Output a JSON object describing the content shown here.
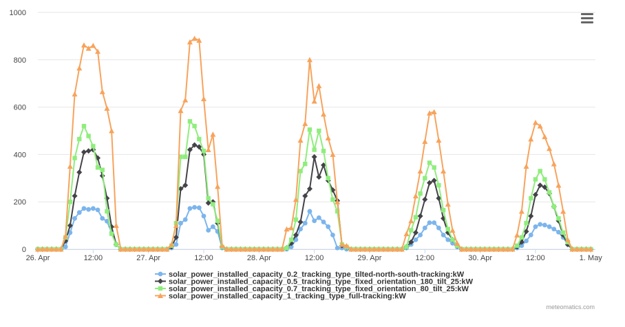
{
  "chart_data": {
    "type": "line",
    "title": "",
    "xlabel": "",
    "ylabel": "",
    "ylim": [
      0,
      1000
    ],
    "yticks": [
      0,
      200,
      400,
      600,
      800,
      1000
    ],
    "xlim": [
      0,
      121
    ],
    "x_unit": "hours since 26. Apr 00:00",
    "xtick_labels": [
      {
        "x": 0,
        "label": "26. Apr"
      },
      {
        "x": 12,
        "label": "12:00"
      },
      {
        "x": 24,
        "label": "27. Apr"
      },
      {
        "x": 36,
        "label": "12:00"
      },
      {
        "x": 48,
        "label": "28. Apr"
      },
      {
        "x": 60,
        "label": "12:00"
      },
      {
        "x": 72,
        "label": "29. Apr"
      },
      {
        "x": 84,
        "label": "12:00"
      },
      {
        "x": 96,
        "label": "30. Apr"
      },
      {
        "x": 108,
        "label": "12:00"
      },
      {
        "x": 120,
        "label": "1. May"
      }
    ],
    "grid": "horizontal",
    "legend_position": "bottom-center",
    "x": [
      0,
      1,
      2,
      3,
      4,
      5,
      6,
      7,
      8,
      9,
      10,
      11,
      12,
      13,
      14,
      15,
      16,
      17,
      18,
      19,
      20,
      21,
      22,
      23,
      24,
      25,
      26,
      27,
      28,
      29,
      30,
      31,
      32,
      33,
      34,
      35,
      36,
      37,
      38,
      39,
      40,
      41,
      42,
      43,
      44,
      45,
      46,
      47,
      48,
      49,
      50,
      51,
      52,
      53,
      54,
      55,
      56,
      57,
      58,
      59,
      60,
      61,
      62,
      63,
      64,
      65,
      66,
      67,
      68,
      69,
      70,
      71,
      72,
      73,
      74,
      75,
      76,
      77,
      78,
      79,
      80,
      81,
      82,
      83,
      84,
      85,
      86,
      87,
      88,
      89,
      90,
      91,
      92,
      93,
      94,
      95,
      96,
      97,
      98,
      99,
      100,
      101,
      102,
      103,
      104,
      105,
      106,
      107,
      108,
      109,
      110,
      111,
      112,
      113,
      114,
      115,
      116,
      117,
      118,
      119,
      120
    ],
    "series": [
      {
        "name": "solar_power_installed_capacity_0.2_tracking_type_tilted-north-south-tracking:kW",
        "color": "#7cb5ec",
        "marker": "circle",
        "values": [
          0,
          0,
          0,
          0,
          0,
          0,
          10,
          70,
          130,
          155,
          172,
          168,
          172,
          166,
          130,
          118,
          70,
          20,
          0,
          0,
          0,
          0,
          0,
          0,
          0,
          0,
          0,
          0,
          0,
          5,
          20,
          110,
          125,
          172,
          177,
          175,
          140,
          80,
          95,
          75,
          5,
          0,
          0,
          0,
          0,
          0,
          0,
          0,
          0,
          0,
          0,
          0,
          0,
          0,
          0,
          10,
          40,
          85,
          110,
          160,
          120,
          133,
          115,
          95,
          60,
          5,
          5,
          0,
          0,
          0,
          0,
          0,
          0,
          0,
          0,
          0,
          0,
          0,
          0,
          0,
          5,
          20,
          40,
          60,
          90,
          112,
          112,
          90,
          60,
          40,
          25,
          10,
          0,
          0,
          0,
          0,
          0,
          0,
          0,
          0,
          0,
          0,
          0,
          0,
          5,
          15,
          35,
          60,
          95,
          105,
          102,
          95,
          85,
          72,
          50,
          20,
          0,
          0,
          0,
          0,
          0
        ]
      },
      {
        "name": "solar_power_installed_capacity_0.5_tracking_type_fixed_orientation_180_tilt_25:kW",
        "color": "#434348",
        "marker": "diamond",
        "values": [
          0,
          0,
          0,
          0,
          0,
          0,
          35,
          100,
          225,
          325,
          410,
          415,
          420,
          385,
          310,
          215,
          95,
          20,
          0,
          0,
          0,
          0,
          0,
          0,
          0,
          0,
          0,
          0,
          0,
          10,
          50,
          255,
          270,
          420,
          440,
          432,
          400,
          195,
          200,
          110,
          10,
          0,
          0,
          0,
          0,
          0,
          0,
          0,
          0,
          0,
          0,
          0,
          0,
          0,
          5,
          25,
          60,
          115,
          225,
          255,
          390,
          305,
          355,
          290,
          250,
          205,
          15,
          10,
          0,
          0,
          0,
          0,
          0,
          0,
          0,
          0,
          0,
          0,
          0,
          0,
          10,
          30,
          70,
          140,
          210,
          280,
          290,
          215,
          130,
          70,
          40,
          15,
          0,
          0,
          0,
          0,
          0,
          0,
          0,
          0,
          0,
          0,
          0,
          0,
          10,
          30,
          75,
          140,
          230,
          270,
          262,
          235,
          180,
          120,
          60,
          20,
          0,
          0,
          0,
          0,
          0
        ]
      },
      {
        "name": "solar_power_installed_capacity_0.7_tracking_type_fixed_orientation_80_tilt_25:kW",
        "color": "#90ed7d",
        "marker": "square",
        "values": [
          0,
          0,
          0,
          0,
          0,
          0,
          50,
          200,
          385,
          465,
          520,
          478,
          435,
          345,
          335,
          160,
          65,
          20,
          0,
          0,
          0,
          0,
          0,
          0,
          0,
          0,
          0,
          0,
          0,
          15,
          110,
          390,
          390,
          540,
          520,
          465,
          415,
          215,
          190,
          120,
          10,
          0,
          0,
          0,
          0,
          0,
          0,
          0,
          0,
          0,
          0,
          0,
          0,
          0,
          5,
          40,
          125,
          330,
          360,
          505,
          420,
          500,
          415,
          300,
          210,
          160,
          20,
          10,
          0,
          0,
          0,
          0,
          0,
          0,
          0,
          0,
          0,
          0,
          0,
          0,
          10,
          80,
          135,
          235,
          300,
          365,
          345,
          270,
          165,
          85,
          40,
          15,
          0,
          0,
          0,
          0,
          0,
          0,
          0,
          0,
          0,
          0,
          0,
          0,
          15,
          50,
          110,
          215,
          295,
          330,
          295,
          240,
          180,
          130,
          70,
          30,
          0,
          0,
          0,
          0,
          0
        ]
      },
      {
        "name": "solar_power_installed_capacity_1_tracking_type_full-tracking:kW",
        "color": "#f7a35c",
        "marker": "triangle",
        "values": [
          0,
          0,
          0,
          0,
          0,
          0,
          55,
          350,
          655,
          765,
          862,
          848,
          860,
          835,
          665,
          595,
          500,
          100,
          0,
          0,
          0,
          0,
          0,
          0,
          0,
          0,
          0,
          0,
          0,
          20,
          100,
          585,
          630,
          875,
          890,
          882,
          635,
          420,
          485,
          265,
          15,
          0,
          0,
          0,
          0,
          0,
          0,
          0,
          0,
          0,
          0,
          0,
          0,
          0,
          85,
          90,
          210,
          460,
          530,
          800,
          625,
          690,
          570,
          470,
          400,
          200,
          20,
          15,
          0,
          0,
          0,
          0,
          0,
          0,
          0,
          0,
          0,
          0,
          0,
          0,
          65,
          120,
          225,
          330,
          455,
          575,
          580,
          460,
          330,
          190,
          80,
          25,
          0,
          0,
          0,
          0,
          0,
          0,
          0,
          0,
          0,
          0,
          0,
          0,
          60,
          160,
          350,
          465,
          535,
          520,
          475,
          425,
          360,
          270,
          160,
          40,
          0,
          0,
          0,
          0,
          0
        ]
      }
    ]
  },
  "credits": "meteomatics.com"
}
